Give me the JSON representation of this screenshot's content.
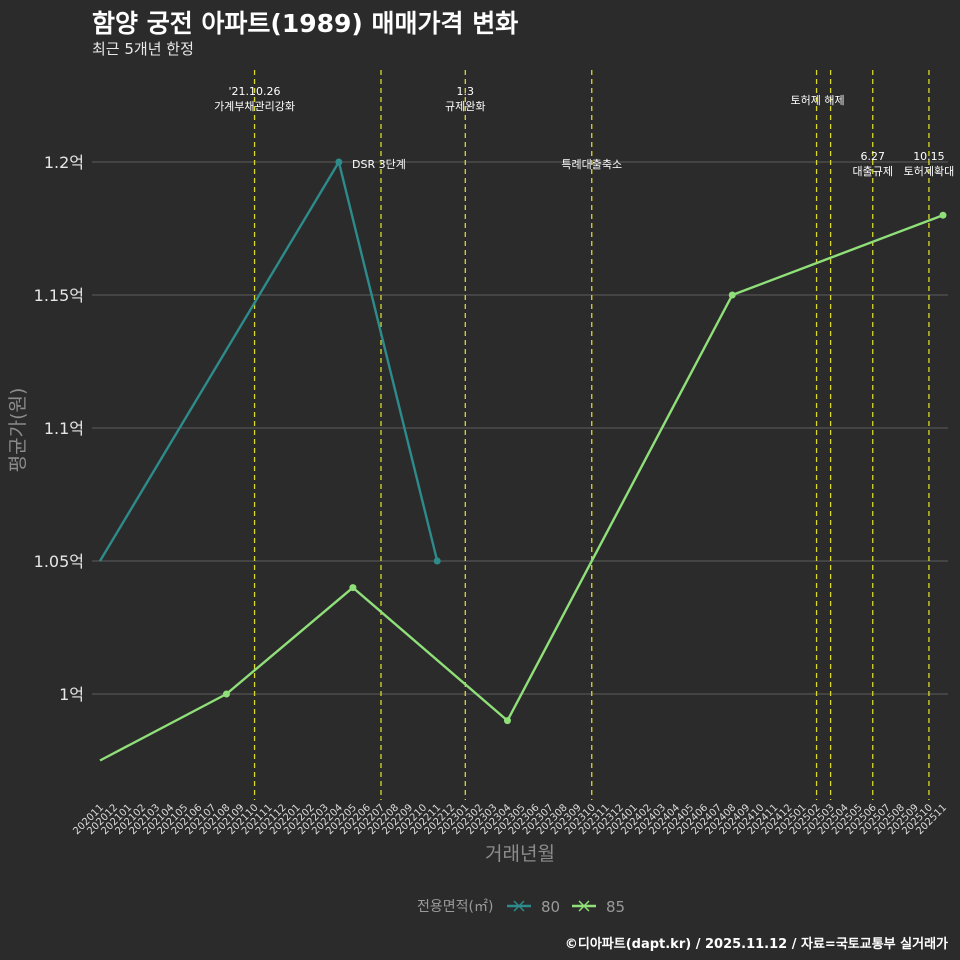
{
  "title": "함양 궁전 아파트(1989) 매매가격 변화",
  "subtitle": "최근 5개년 한정",
  "credit": "©디아파트(dapt.kr) / 2025.11.12 / 자료=국토교통부 실거래가",
  "colors": {
    "background": "#2b2b2b",
    "grid": "#5e5e5e",
    "event_line": "#d9d92b",
    "series_80": "#2e8b8b",
    "series_85": "#90e07a"
  },
  "chart_data": {
    "type": "line",
    "title": "함양 궁전 아파트(1989) 매매가격 변화",
    "xlabel": "거래년월",
    "ylabel": "평균가(원)",
    "ylim": [
      0.965,
      1.225
    ],
    "y_ticks": [
      {
        "value": 1.0,
        "label": "1억"
      },
      {
        "value": 1.05,
        "label": "1.05억"
      },
      {
        "value": 1.1,
        "label": "1.1억"
      },
      {
        "value": 1.15,
        "label": "1.15억"
      },
      {
        "value": 1.2,
        "label": "1.2억"
      }
    ],
    "x_categories": [
      "202011",
      "202012",
      "202101",
      "202102",
      "202103",
      "202104",
      "202105",
      "202106",
      "202107",
      "202108",
      "202109",
      "202110",
      "202111",
      "202112",
      "202201",
      "202202",
      "202203",
      "202204",
      "202205",
      "202206",
      "202207",
      "202208",
      "202209",
      "202210",
      "202211",
      "202212",
      "202301",
      "202302",
      "202303",
      "202304",
      "202305",
      "202306",
      "202307",
      "202308",
      "202309",
      "202310",
      "202311",
      "202312",
      "202401",
      "202402",
      "202403",
      "202404",
      "202405",
      "202406",
      "202407",
      "202408",
      "202409",
      "202410",
      "202411",
      "202412",
      "202501",
      "202502",
      "202503",
      "202504",
      "202505",
      "202506",
      "202507",
      "202508",
      "202509",
      "202510",
      "202511"
    ],
    "legend": {
      "title": "전용면적(㎡)",
      "position": "bottom"
    },
    "series": [
      {
        "name": "80",
        "color": "#2e8b8b",
        "points": [
          {
            "x": "202011",
            "y": 1.05
          },
          {
            "x": "202204",
            "y": 1.2
          },
          {
            "x": "202211",
            "y": 1.05
          }
        ]
      },
      {
        "name": "85",
        "color": "#90e07a",
        "points": [
          {
            "x": "202011",
            "y": 0.975
          },
          {
            "x": "202108",
            "y": 1.0
          },
          {
            "x": "202205",
            "y": 1.04
          },
          {
            "x": "202304",
            "y": 0.99
          },
          {
            "x": "202408",
            "y": 1.15
          },
          {
            "x": "202511",
            "y": 1.18
          }
        ]
      }
    ],
    "events": [
      {
        "x": "202110",
        "lines": [
          "'21.10.26",
          "가계부채관리강화"
        ],
        "row": "top"
      },
      {
        "x": "202207",
        "lines": [
          "DSR 3단계"
        ],
        "row": "mid"
      },
      {
        "x": "202301",
        "lines": [
          "1.3",
          "규제완화"
        ],
        "row": "top"
      },
      {
        "x": "202310",
        "lines": [
          "특례대출축소"
        ],
        "row": "mid"
      },
      {
        "x": "202502",
        "lines": [],
        "row": "none"
      },
      {
        "x": "202503",
        "lines": [
          "토허제 해제"
        ],
        "row": "top2"
      },
      {
        "x": "202506",
        "lines": [
          "6.27",
          "대출규제"
        ],
        "row": "low"
      },
      {
        "x": "202510",
        "lines": [
          "10.15",
          "토허제확대"
        ],
        "row": "low"
      }
    ]
  }
}
